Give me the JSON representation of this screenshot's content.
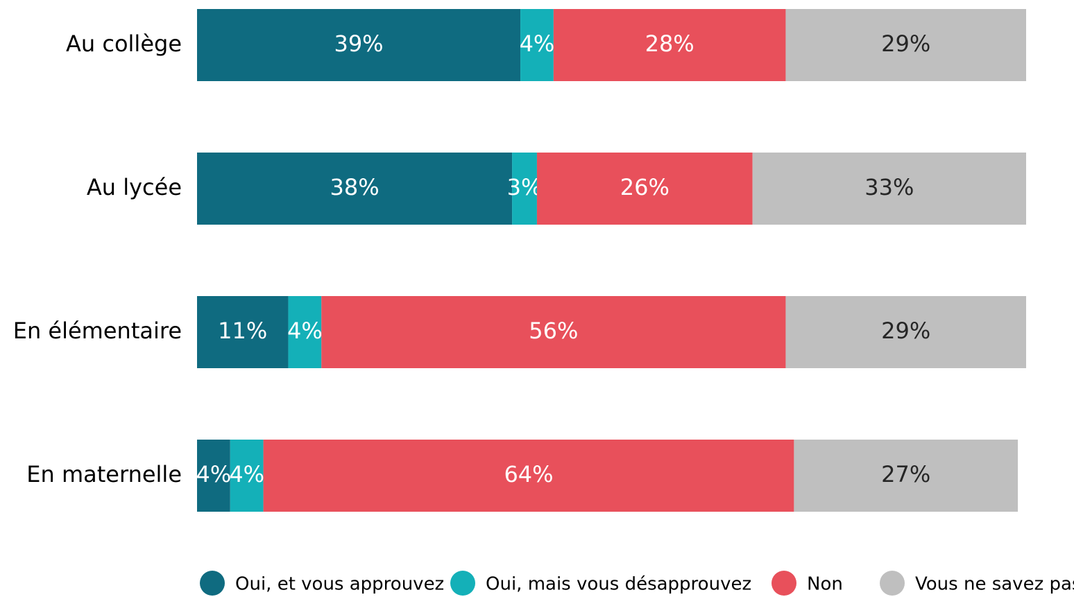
{
  "chart_data": {
    "type": "stacked_barh",
    "categories": [
      "Au collège",
      "Au lycée",
      "En élémentaire",
      "En maternelle"
    ],
    "series": [
      {
        "name": "Oui, et vous approuvez",
        "color": "#0f6b80",
        "values": [
          39,
          38,
          11,
          4
        ],
        "value_labels": [
          "39%",
          "38%",
          "11%",
          "4%"
        ]
      },
      {
        "name": "Oui, mais vous désapprouvez",
        "color": "#14b0b8",
        "values": [
          4,
          3,
          4,
          4
        ],
        "value_labels": [
          "4%",
          "3%",
          "4%",
          "4%"
        ]
      },
      {
        "name": "Non",
        "color": "#e8505b",
        "values": [
          28,
          26,
          56,
          64
        ],
        "value_labels": [
          "28%",
          "26%",
          "56%",
          "64%"
        ]
      },
      {
        "name": "Vous ne savez pas",
        "color": "#bfbfbf",
        "values": [
          29,
          33,
          29,
          27
        ],
        "value_labels": [
          "29%",
          "33%",
          "29%",
          "27%"
        ]
      }
    ],
    "xlim": [
      0,
      100
    ],
    "legend": "bottom"
  }
}
